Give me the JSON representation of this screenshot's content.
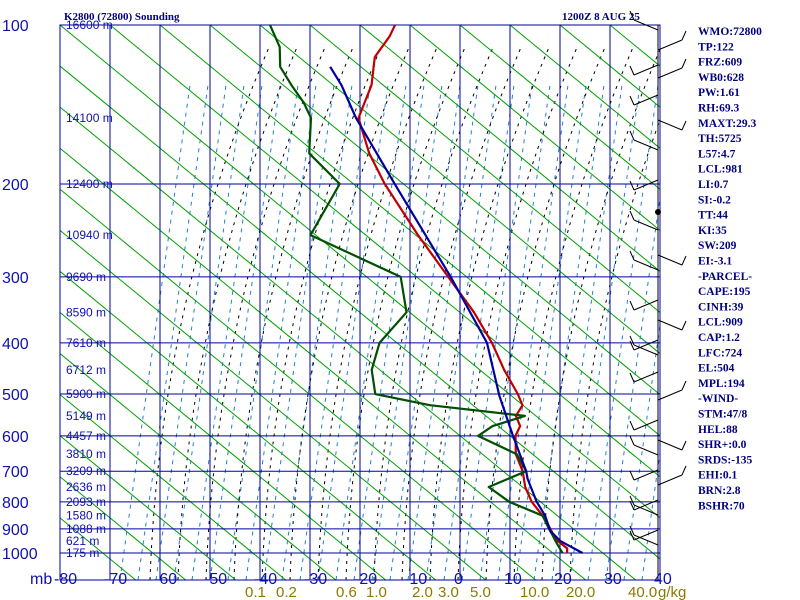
{
  "chart_data": {
    "type": "line",
    "title": "K2800 (72800) Sounding",
    "datetime": "1200Z  8 AUG 25",
    "xaxis_unit": "mb",
    "x_ticks": [
      "-80",
      "-70",
      "-60",
      "-50",
      "-40",
      "-30",
      "-20",
      "-10",
      "0",
      "10",
      "20",
      "30",
      "40"
    ],
    "pressure_ticks": [
      100,
      200,
      300,
      400,
      500,
      600,
      700,
      800,
      900,
      1000
    ],
    "height_labels": [
      {
        "p": 100,
        "label": "16600 m"
      },
      {
        "p": 150,
        "label": "14100 m"
      },
      {
        "p": 200,
        "label": "12400 m"
      },
      {
        "p": 250,
        "label": "10940 m"
      },
      {
        "p": 300,
        "label": "9690 m"
      },
      {
        "p": 350,
        "label": "8590 m"
      },
      {
        "p": 400,
        "label": "7610 m"
      },
      {
        "p": 450,
        "label": "6712 m"
      },
      {
        "p": 500,
        "label": "5900 m"
      },
      {
        "p": 550,
        "label": "5149 m"
      },
      {
        "p": 600,
        "label": "4457 m"
      },
      {
        "p": 650,
        "label": "3810 m"
      },
      {
        "p": 700,
        "label": "3209 m"
      },
      {
        "p": 750,
        "label": "2636 m"
      },
      {
        "p": 800,
        "label": "2093 m"
      },
      {
        "p": 850,
        "label": "1580 m"
      },
      {
        "p": 900,
        "label": "1088 m"
      },
      {
        "p": 950,
        "label": "621 m"
      },
      {
        "p": 1000,
        "label": "175 m"
      }
    ],
    "mixing_ratio_labels": [
      "0.1",
      "0.2",
      "0.6",
      "1.0",
      "2.0",
      "3.0",
      "5.0",
      "10.0",
      "20.0",
      "40.0"
    ],
    "mixing_ratio_unit": "g/kg",
    "series": [
      {
        "role": "temperature",
        "color": "#c00000",
        "points": [
          [
            1000,
            21.4
          ],
          [
            980,
            21.0
          ],
          [
            950,
            18.5
          ],
          [
            925,
            17.0
          ],
          [
            900,
            15.8
          ],
          [
            850,
            13.0
          ],
          [
            800,
            9.5
          ],
          [
            750,
            6.8
          ],
          [
            700,
            4.8
          ],
          [
            650,
            1.8
          ],
          [
            600,
            0.0
          ],
          [
            575,
            0.0
          ],
          [
            550,
            -1.8
          ],
          [
            525,
            -1.5
          ],
          [
            500,
            -3.5
          ],
          [
            450,
            -8.5
          ],
          [
            400,
            -13.5
          ],
          [
            350,
            -20.0
          ],
          [
            300,
            -28.5
          ],
          [
            250,
            -38.5
          ],
          [
            200,
            -50.0
          ],
          [
            175,
            -56.0
          ],
          [
            150,
            -61.5
          ],
          [
            130,
            -62.0
          ],
          [
            115,
            -64.0
          ],
          [
            105,
            -63.0
          ],
          [
            100,
            -63.0
          ]
        ]
      },
      {
        "role": "dewpoint",
        "color": "#005000",
        "points": [
          [
            1000,
            20.5
          ],
          [
            950,
            18.0
          ],
          [
            925,
            16.8
          ],
          [
            900,
            15.5
          ],
          [
            850,
            13.0
          ],
          [
            800,
            5.0
          ],
          [
            750,
            -0.5
          ],
          [
            700,
            5.5
          ],
          [
            650,
            2.0
          ],
          [
            600,
            -7.5
          ],
          [
            575,
            -5.5
          ],
          [
            550,
            0.0
          ],
          [
            525,
            -20.0
          ],
          [
            500,
            -32.0
          ],
          [
            450,
            -35.0
          ],
          [
            400,
            -36.0
          ],
          [
            350,
            -33.5
          ],
          [
            300,
            -38.0
          ],
          [
            250,
            -60.0
          ],
          [
            200,
            -59.0
          ],
          [
            175,
            -68.0
          ],
          [
            150,
            -71.0
          ],
          [
            140,
            -74.0
          ],
          [
            130,
            -78.0
          ],
          [
            120,
            -82.0
          ],
          [
            110,
            -84.0
          ],
          [
            100,
            -88.0
          ]
        ]
      },
      {
        "role": "parcel",
        "color": "#0000a0",
        "points": [
          [
            1000,
            24.5
          ],
          [
            950,
            19.0
          ],
          [
            909,
            16.0
          ],
          [
            850,
            13.5
          ],
          [
            800,
            10.5
          ],
          [
            724,
            6.5
          ],
          [
            700,
            5.5
          ],
          [
            600,
            -0.5
          ],
          [
            504,
            -7.0
          ],
          [
            400,
            -14.5
          ],
          [
            300,
            -28.0
          ],
          [
            250,
            -37.0
          ],
          [
            200,
            -48.0
          ],
          [
            150,
            -62.0
          ],
          [
            130,
            -68.0
          ],
          [
            120,
            -72.0
          ]
        ]
      }
    ],
    "indices": [
      "WMO:72800",
      "TP:122",
      "FRZ:609",
      "WB0:628",
      "PW:1.61",
      "RH:69.3",
      "MAXT:29.3",
      "TH:5725",
      "L57:4.7",
      "LCL:981",
      "LI:0.7",
      "SI:-0.2",
      "TT:44",
      "KI:35",
      "SW:209",
      "EI:-3.1",
      "-PARCEL-",
      "CAPE:195",
      "CINH:39",
      "LCL:909",
      "CAP:1.2",
      "LFC:724",
      "EL:504",
      "MPL:194",
      "-WIND-",
      "STM:47/8",
      "HEL:88",
      "SHR+:0.0",
      "SRDS:-135",
      "EHI:0.1",
      "BRN:2.8",
      "BSHR:70"
    ],
    "colors": {
      "grid": "#0000a0",
      "dry_adiabat": "#00a000",
      "moist_adiabat": "#000000",
      "mixing_ratio": "#2080d0",
      "temperature": "#c00000",
      "dewpoint": "#005000",
      "parcel": "#0000a0",
      "text": "#000080"
    }
  }
}
